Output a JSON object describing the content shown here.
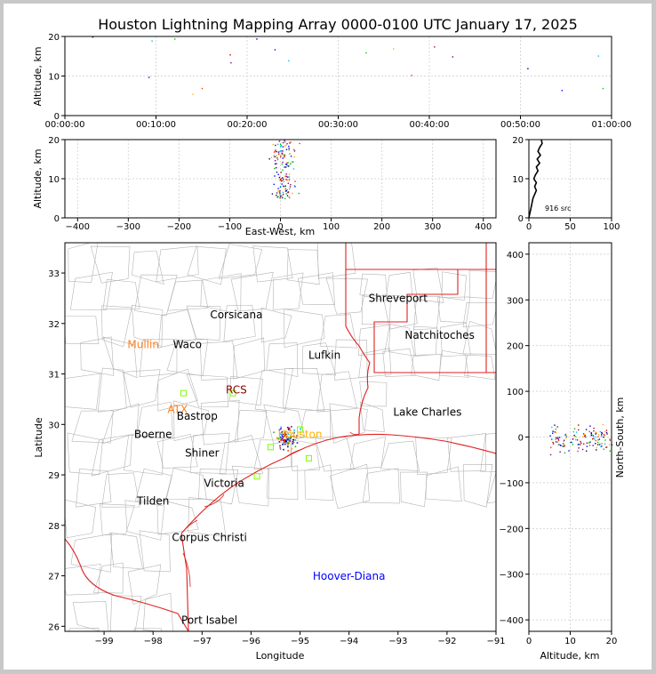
{
  "title": "Houston Lightning Mapping Array 0000-0100 UTC January 17, 2025",
  "source_count_label": "916 src",
  "chart_data": [
    {
      "panel": "time-altitude",
      "type": "scatter",
      "ylabel": "Altitude, km",
      "xlim": [
        "00:00:00",
        "01:00:00"
      ],
      "ylim": [
        0,
        20
      ],
      "xticks": [
        "00:00:00",
        "00:10:00",
        "00:20:00",
        "00:30:00",
        "00:40:00",
        "00:50:00",
        "01:00:00"
      ],
      "yticks": [
        "0",
        "10",
        "20"
      ],
      "grid": true,
      "points": [
        {
          "t": "00:03:00",
          "alt": 20
        },
        {
          "t": "00:09:10",
          "alt": 9.8
        },
        {
          "t": "00:09:30",
          "alt": 19
        },
        {
          "t": "00:12:00",
          "alt": 19.5
        },
        {
          "t": "00:14:00",
          "alt": 5.5
        },
        {
          "t": "00:15:00",
          "alt": 7
        },
        {
          "t": "00:18:05",
          "alt": 15.5
        },
        {
          "t": "00:18:10",
          "alt": 13.5
        },
        {
          "t": "00:21:00",
          "alt": 19.5
        },
        {
          "t": "00:23:00",
          "alt": 16.8
        },
        {
          "t": "00:24:30",
          "alt": 14
        },
        {
          "t": "00:33:00",
          "alt": 16
        },
        {
          "t": "00:36:00",
          "alt": 17
        },
        {
          "t": "00:38:00",
          "alt": 10.3
        },
        {
          "t": "00:40:30",
          "alt": 17.5
        },
        {
          "t": "00:42:30",
          "alt": 15
        },
        {
          "t": "00:50:45",
          "alt": 12
        },
        {
          "t": "00:54:30",
          "alt": 6.5
        },
        {
          "t": "00:58:30",
          "alt": 15.2
        },
        {
          "t": "00:59:00",
          "alt": 7
        }
      ]
    },
    {
      "panel": "east-west-altitude",
      "type": "scatter",
      "xlabel": "East-West, km",
      "ylabel": "Altitude, km",
      "xlim": [
        -425,
        425
      ],
      "ylim": [
        0,
        20
      ],
      "xticks": [
        "−400",
        "−300",
        "−200",
        "−100",
        "0",
        "100",
        "200",
        "300",
        "400"
      ],
      "yticks": [
        "0",
        "10",
        "20"
      ],
      "grid": true
    },
    {
      "panel": "altitude-histogram",
      "type": "line",
      "xlim": [
        0,
        100
      ],
      "ylim": [
        0,
        20
      ],
      "xticks": [
        "0",
        "50",
        "100"
      ],
      "yticks": [
        "0",
        "10",
        "20"
      ],
      "profile": [
        {
          "alt": 0,
          "count": 0
        },
        {
          "alt": 1,
          "count": 1
        },
        {
          "alt": 2,
          "count": 2
        },
        {
          "alt": 3,
          "count": 3
        },
        {
          "alt": 4,
          "count": 4
        },
        {
          "alt": 5,
          "count": 5
        },
        {
          "alt": 6,
          "count": 7
        },
        {
          "alt": 7,
          "count": 9
        },
        {
          "alt": 8,
          "count": 7
        },
        {
          "alt": 9,
          "count": 9
        },
        {
          "alt": 10,
          "count": 6
        },
        {
          "alt": 11,
          "count": 8
        },
        {
          "alt": 12,
          "count": 11
        },
        {
          "alt": 13,
          "count": 9
        },
        {
          "alt": 14,
          "count": 13
        },
        {
          "alt": 15,
          "count": 10
        },
        {
          "alt": 16,
          "count": 14
        },
        {
          "alt": 17,
          "count": 11
        },
        {
          "alt": 18,
          "count": 13
        },
        {
          "alt": 19,
          "count": 16
        },
        {
          "alt": 20,
          "count": 15
        }
      ]
    },
    {
      "panel": "plan-view-map",
      "type": "scatter",
      "xlabel": "Longitude",
      "ylabel": "Latitude",
      "xlim": [
        -99.8,
        -91.0
      ],
      "ylim": [
        25.9,
        33.6
      ],
      "xticks": [
        "−99",
        "−98",
        "−97",
        "−96",
        "−95",
        "−94",
        "−93",
        "−92",
        "−91"
      ],
      "yticks": [
        "26",
        "27",
        "28",
        "29",
        "30",
        "31",
        "32",
        "33"
      ],
      "labels": [
        {
          "text": "Shreveport",
          "lon": -93.0,
          "lat": 32.5,
          "color": "#000000"
        },
        {
          "text": "Corsicana",
          "lon": -96.3,
          "lat": 32.17,
          "color": "#000000"
        },
        {
          "text": "Mullin",
          "lon": -98.2,
          "lat": 31.58,
          "color": "#ff7f1e"
        },
        {
          "text": "Waco",
          "lon": -97.3,
          "lat": 31.58,
          "color": "#000000"
        },
        {
          "text": "Natchitoches",
          "lon": -92.15,
          "lat": 31.77,
          "color": "#000000"
        },
        {
          "text": "Lufkin",
          "lon": -94.5,
          "lat": 31.37,
          "color": "#000000"
        },
        {
          "text": "RCS",
          "lon": -96.3,
          "lat": 30.68,
          "color": "#8b0000"
        },
        {
          "text": "ATX",
          "lon": -97.5,
          "lat": 30.3,
          "color": "#ff7f1e"
        },
        {
          "text": "Bastrop",
          "lon": -97.1,
          "lat": 30.16,
          "color": "#000000"
        },
        {
          "text": "Lake Charles",
          "lon": -92.4,
          "lat": 30.24,
          "color": "#000000"
        },
        {
          "text": "Boerne",
          "lon": -98.0,
          "lat": 29.8,
          "color": "#000000"
        },
        {
          "text": "Houston",
          "lon": -95.0,
          "lat": 29.8,
          "color": "#ffb400"
        },
        {
          "text": "Shiner",
          "lon": -97.0,
          "lat": 29.43,
          "color": "#000000"
        },
        {
          "text": "Victoria",
          "lon": -96.55,
          "lat": 28.83,
          "color": "#000000"
        },
        {
          "text": "Tilden",
          "lon": -98.0,
          "lat": 28.48,
          "color": "#000000"
        },
        {
          "text": "Corpus Christi",
          "lon": -96.85,
          "lat": 27.76,
          "color": "#000000"
        },
        {
          "text": "Hoover-Diana",
          "lon": -94.0,
          "lat": 26.99,
          "color": "#0000ff"
        },
        {
          "text": "Port Isabel",
          "lon": -96.85,
          "lat": 26.12,
          "color": "#000000"
        }
      ]
    },
    {
      "panel": "altitude-north-south",
      "type": "scatter",
      "xlabel": "Altitude, km",
      "ylabel": "North-South, km",
      "xlim": [
        0,
        20
      ],
      "ylim": [
        -425,
        425
      ],
      "xticks": [
        "0",
        "10",
        "20"
      ],
      "yticks": [
        "−400",
        "−300",
        "−200",
        "−100",
        "0",
        "100",
        "200",
        "300",
        "400"
      ],
      "grid": true
    }
  ]
}
